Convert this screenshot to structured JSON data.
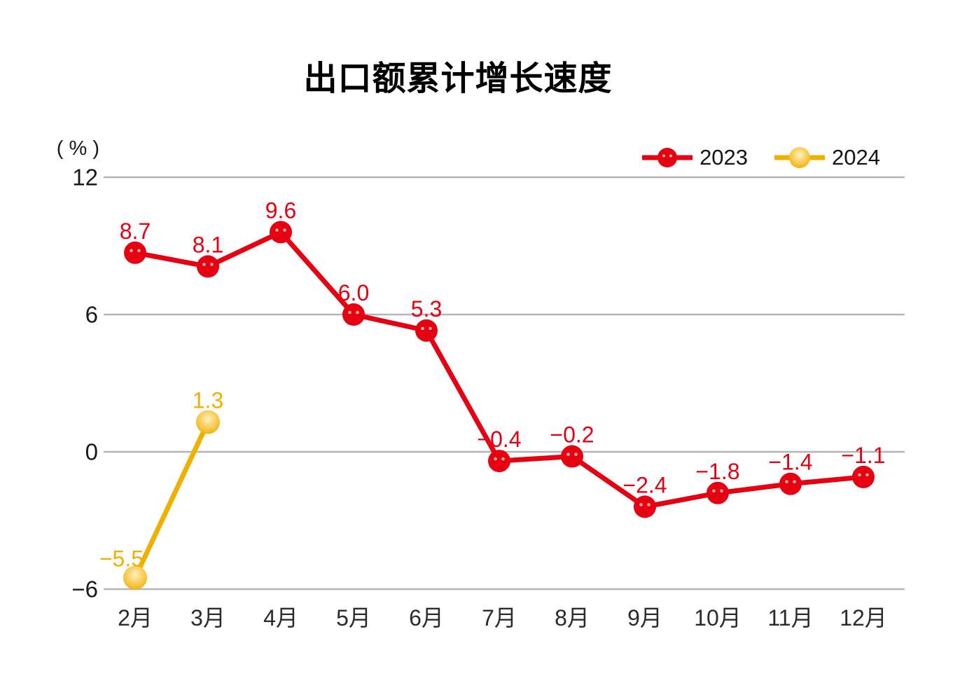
{
  "title": "出口额累计增长速度",
  "chart_data": {
    "type": "line",
    "title": "出口额累计增长速度",
    "y_unit_label": "( % )",
    "categories": [
      "2月",
      "3月",
      "4月",
      "5月",
      "6月",
      "7月",
      "8月",
      "9月",
      "10月",
      "11月",
      "12月"
    ],
    "series": [
      {
        "name": "2023",
        "color": "#E60012",
        "values": [
          8.7,
          8.1,
          9.6,
          6.0,
          5.3,
          -0.4,
          -0.2,
          -2.4,
          -1.8,
          -1.4,
          -1.1
        ],
        "labels": [
          "8.7",
          "8.1",
          "9.6",
          "6.0",
          "5.3",
          "−0.4",
          "−0.2",
          "−2.4",
          "−1.8",
          "−1.4",
          "−1.1"
        ]
      },
      {
        "name": "2024",
        "color": "#F0B000",
        "values": [
          -5.5,
          1.3,
          null,
          null,
          null,
          null,
          null,
          null,
          null,
          null,
          null
        ],
        "labels": [
          "−5.5",
          "1.3"
        ]
      }
    ],
    "y_ticks": [
      12,
      6,
      0,
      -6
    ],
    "y_tick_labels": [
      "12",
      "6",
      "0",
      "−6"
    ],
    "ylim": [
      -6,
      12
    ],
    "grid": true,
    "legend_position": "top-right",
    "gridline_color": "#B5B5B5",
    "axis_text_color": "#1A1A1A",
    "xlabel_text_color": "#2B2B2B"
  }
}
